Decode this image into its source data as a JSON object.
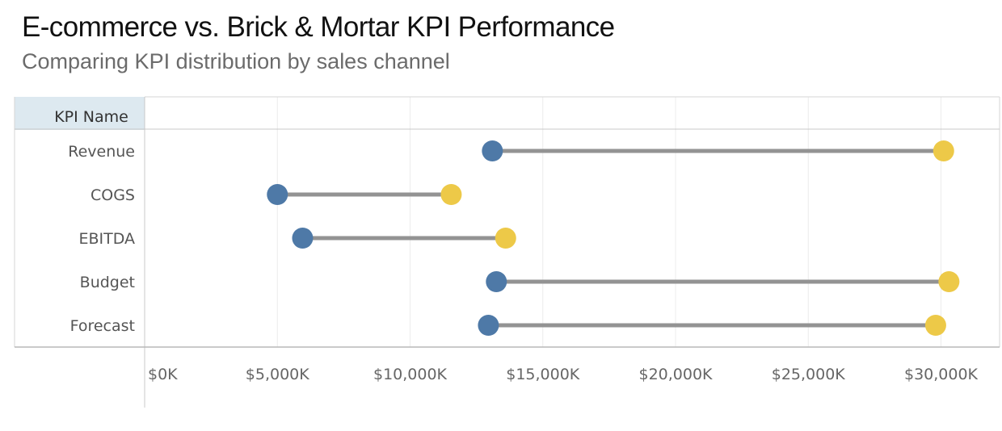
{
  "title": "E-commerce vs. Brick & Mortar KPI Performance",
  "subtitle": "Comparing KPI distribution by sales channel",
  "chart_data": {
    "type": "dumbbell",
    "row_header": "KPI Name",
    "categories": [
      "Revenue",
      "COGS",
      "EBITDA",
      "Budget",
      "Forecast"
    ],
    "series": [
      {
        "color": "#4e79a7",
        "values": [
          13100,
          5000,
          5950,
          13250,
          12950
        ]
      },
      {
        "color": "#edc948",
        "values": [
          30100,
          11550,
          13600,
          30300,
          29800
        ]
      }
    ],
    "xlim": [
      0,
      32000
    ],
    "x_ticks": [
      0,
      5000,
      10000,
      15000,
      20000,
      25000,
      30000
    ],
    "x_tick_labels": [
      "$0K",
      "$5,000K",
      "$10,000K",
      "$15,000K",
      "$20,000K",
      "$25,000K",
      "$30,000K"
    ],
    "connector_color": "#939393",
    "grid": true
  }
}
